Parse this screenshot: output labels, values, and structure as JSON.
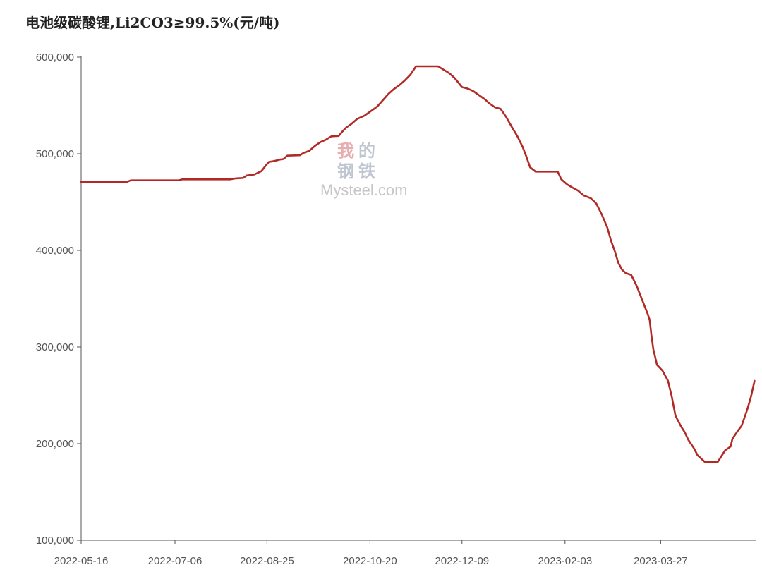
{
  "chart_data": {
    "type": "line",
    "title": "电池级碳酸锂,Li2CO3≥99.5%(元/吨)",
    "xlabel": "",
    "ylabel": "",
    "ylim": [
      100000,
      600000
    ],
    "yticks": [
      "100,000",
      "200,000",
      "300,000",
      "400,000",
      "500,000",
      "600,000"
    ],
    "ytick_values": [
      100000,
      200000,
      300000,
      400000,
      500000,
      600000
    ],
    "xlim": [
      "2022-05-16",
      "2023-05-18"
    ],
    "xticks": [
      "2022-05-16",
      "2022-07-06",
      "2022-08-25",
      "2022-10-20",
      "2022-12-09",
      "2023-02-03",
      "2023-03-27"
    ],
    "grid": false,
    "series": [
      {
        "color": "#b22a25",
        "points": [
          [
            "2022-05-16",
            471000
          ],
          [
            "2022-06-10",
            471000
          ],
          [
            "2022-06-12",
            472500
          ],
          [
            "2022-07-08",
            472500
          ],
          [
            "2022-07-10",
            473500
          ],
          [
            "2022-08-05",
            473500
          ],
          [
            "2022-08-08",
            474500
          ],
          [
            "2022-08-12",
            475000
          ],
          [
            "2022-08-14",
            477500
          ],
          [
            "2022-08-18",
            478500
          ],
          [
            "2022-08-22",
            482000
          ],
          [
            "2022-08-24",
            487000
          ],
          [
            "2022-08-26",
            491500
          ],
          [
            "2022-08-29",
            492500
          ],
          [
            "2022-09-01",
            494000
          ],
          [
            "2022-09-03",
            494500
          ],
          [
            "2022-09-05",
            498000
          ],
          [
            "2022-09-12",
            498500
          ],
          [
            "2022-09-14",
            501000
          ],
          [
            "2022-09-17",
            503000
          ],
          [
            "2022-09-20",
            508000
          ],
          [
            "2022-09-23",
            512000
          ],
          [
            "2022-09-26",
            514500
          ],
          [
            "2022-09-29",
            518000
          ],
          [
            "2022-10-03",
            518500
          ],
          [
            "2022-10-05",
            523000
          ],
          [
            "2022-10-07",
            527000
          ],
          [
            "2022-10-10",
            531000
          ],
          [
            "2022-10-13",
            536000
          ],
          [
            "2022-10-17",
            539500
          ],
          [
            "2022-10-20",
            543500
          ],
          [
            "2022-10-24",
            549000
          ],
          [
            "2022-10-27",
            555500
          ],
          [
            "2022-10-30",
            562000
          ],
          [
            "2022-11-02",
            567000
          ],
          [
            "2022-11-05",
            571000
          ],
          [
            "2022-11-08",
            576000
          ],
          [
            "2022-11-11",
            582000
          ],
          [
            "2022-11-14",
            590500
          ],
          [
            "2022-11-26",
            590500
          ],
          [
            "2022-11-29",
            587000
          ],
          [
            "2022-12-02",
            583500
          ],
          [
            "2022-12-05",
            578500
          ],
          [
            "2022-12-09",
            569000
          ],
          [
            "2022-12-12",
            567500
          ],
          [
            "2022-12-15",
            565000
          ],
          [
            "2022-12-18",
            561000
          ],
          [
            "2022-12-21",
            557000
          ],
          [
            "2022-12-24",
            552000
          ],
          [
            "2022-12-27",
            548000
          ],
          [
            "2022-12-30",
            546500
          ],
          [
            "2023-01-02",
            538000
          ],
          [
            "2023-01-05",
            528000
          ],
          [
            "2023-01-08",
            518500
          ],
          [
            "2023-01-11",
            507000
          ],
          [
            "2023-01-13",
            497000
          ],
          [
            "2023-01-15",
            486000
          ],
          [
            "2023-01-18",
            481500
          ],
          [
            "2023-01-30",
            481500
          ],
          [
            "2023-02-01",
            473500
          ],
          [
            "2023-02-04",
            468500
          ],
          [
            "2023-02-07",
            465000
          ],
          [
            "2023-02-10",
            462000
          ],
          [
            "2023-02-13",
            457000
          ],
          [
            "2023-02-17",
            454000
          ],
          [
            "2023-02-20",
            448500
          ],
          [
            "2023-02-23",
            437000
          ],
          [
            "2023-02-26",
            423500
          ],
          [
            "2023-02-28",
            410000
          ],
          [
            "2023-03-02",
            399500
          ],
          [
            "2023-03-04",
            387000
          ],
          [
            "2023-03-06",
            380000
          ],
          [
            "2023-03-08",
            376500
          ],
          [
            "2023-03-11",
            374500
          ],
          [
            "2023-03-14",
            363000
          ],
          [
            "2023-03-17",
            348500
          ],
          [
            "2023-03-20",
            334000
          ],
          [
            "2023-03-21",
            328000
          ],
          [
            "2023-03-22",
            311000
          ],
          [
            "2023-03-23",
            297500
          ],
          [
            "2023-03-25",
            281500
          ],
          [
            "2023-03-28",
            275500
          ],
          [
            "2023-03-31",
            265000
          ],
          [
            "2023-04-02",
            249000
          ],
          [
            "2023-04-04",
            229000
          ],
          [
            "2023-04-07",
            218000
          ],
          [
            "2023-04-09",
            212000
          ],
          [
            "2023-04-11",
            204000
          ],
          [
            "2023-04-14",
            195500
          ],
          [
            "2023-04-16",
            188000
          ],
          [
            "2023-04-18",
            184500
          ],
          [
            "2023-04-20",
            181000
          ],
          [
            "2023-04-27",
            181000
          ],
          [
            "2023-05-01",
            193000
          ],
          [
            "2023-05-04",
            197000
          ],
          [
            "2023-05-05",
            205000
          ],
          [
            "2023-05-08",
            213500
          ],
          [
            "2023-05-10",
            218500
          ],
          [
            "2023-05-13",
            235000
          ],
          [
            "2023-05-15",
            248000
          ],
          [
            "2023-05-17",
            265000
          ]
        ]
      }
    ]
  },
  "watermark": {
    "cn_chars": [
      "我",
      "的",
      "钢",
      "铁"
    ],
    "cn_colors": [
      "#e2a0a0",
      "#b6bdca",
      "#b6bdca",
      "#b6bdca"
    ],
    "en": "Mysteel.com"
  }
}
